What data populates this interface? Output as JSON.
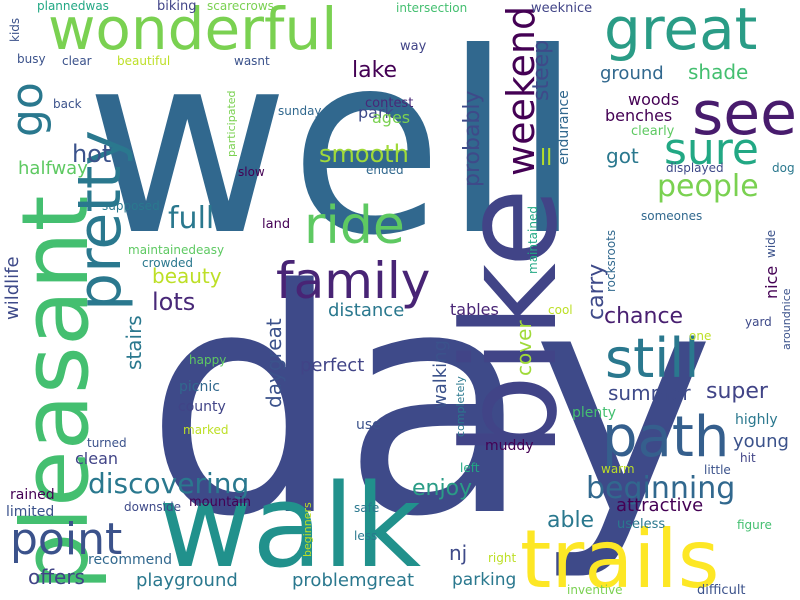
{
  "palette": {
    "dark_purple": "#440154",
    "indigo": "#414487",
    "blue": "#355f8d",
    "teal_blue": "#2a788e",
    "teal": "#21918c",
    "green_teal": "#22a884",
    "green": "#44bf70",
    "light_green": "#7ad151",
    "yellow_green": "#bddf26",
    "yellow": "#fde725"
  },
  "words": [
    {
      "text": "well",
      "color": "#31688e"
    },
    {
      "text": "day",
      "color": "#3e4a89"
    },
    {
      "text": "bike",
      "color": "#414487"
    },
    {
      "text": "walk",
      "color": "#21918c"
    },
    {
      "text": "trails",
      "color": "#fde725"
    },
    {
      "text": "path",
      "color": "#355f8d"
    },
    {
      "text": "wonderful",
      "color": "#7ad151"
    },
    {
      "text": "great",
      "color": "#2a9c86"
    },
    {
      "text": "pleasant",
      "color": "#44bf70"
    },
    {
      "text": "pretty",
      "color": "#2a788e"
    },
    {
      "text": "ride",
      "color": "#5ec962"
    },
    {
      "text": "family",
      "color": "#482475"
    },
    {
      "text": "see",
      "color": "#481b6d"
    },
    {
      "text": "sure",
      "color": "#22a884"
    },
    {
      "text": "still",
      "color": "#2a788e"
    },
    {
      "text": "point",
      "color": "#3b528b"
    },
    {
      "text": "go",
      "color": "#2a788e"
    },
    {
      "text": "people",
      "color": "#7ad151"
    },
    {
      "text": "weekend",
      "color": "#440154"
    },
    {
      "text": "beginning",
      "color": "#31688e"
    },
    {
      "text": "discovering",
      "color": "#2a788e"
    },
    {
      "text": "full",
      "color": "#2a788e"
    },
    {
      "text": "smooth",
      "color": "#a0da39"
    },
    {
      "text": "probably",
      "color": "#3e4a89"
    },
    {
      "text": "steep",
      "color": "#3e4a89"
    },
    {
      "text": "lake",
      "color": "#440154"
    },
    {
      "text": "hot",
      "color": "#3b528b"
    },
    {
      "text": "halfway",
      "color": "#5ec962"
    },
    {
      "text": "got",
      "color": "#2a788e"
    },
    {
      "text": "shade",
      "color": "#44bf70"
    },
    {
      "text": "ground",
      "color": "#31688e"
    },
    {
      "text": "ll",
      "color": "#b5de2b"
    },
    {
      "text": "beauty",
      "color": "#bddf26"
    },
    {
      "text": "lots",
      "color": "#482878"
    },
    {
      "text": "carry",
      "color": "#3e4a89"
    },
    {
      "text": "chance",
      "color": "#481f70"
    },
    {
      "text": "stairs",
      "color": "#2a788e"
    },
    {
      "text": "wildlife",
      "color": "#3e4a89"
    },
    {
      "text": "daygreat",
      "color": "#3b528b"
    },
    {
      "text": "perfect",
      "color": "#414487"
    },
    {
      "text": "walking",
      "color": "#3b528b"
    },
    {
      "text": "cover",
      "color": "#a0da39"
    },
    {
      "text": "summer",
      "color": "#3e4a89"
    },
    {
      "text": "super",
      "color": "#414487"
    },
    {
      "text": "enjoy",
      "color": "#2a9c86"
    },
    {
      "text": "able",
      "color": "#2a788e"
    },
    {
      "text": "young",
      "color": "#3b528b"
    },
    {
      "text": "offers",
      "color": "#414487"
    },
    {
      "text": "nj",
      "color": "#3e4a89"
    },
    {
      "text": "attractive",
      "color": "#440154"
    },
    {
      "text": "distance",
      "color": "#2a788e"
    },
    {
      "text": "tables",
      "color": "#482475"
    },
    {
      "text": "nice",
      "color": "#440154"
    },
    {
      "text": "playground",
      "color": "#2a788e"
    },
    {
      "text": "problemgreat",
      "color": "#2a788e"
    },
    {
      "text": "parking",
      "color": "#2a788e"
    },
    {
      "text": "clean",
      "color": "#414487"
    },
    {
      "text": "rained",
      "color": "#440154"
    },
    {
      "text": "limited",
      "color": "#3b528b"
    },
    {
      "text": "recommend",
      "color": "#31688e"
    },
    {
      "text": "park",
      "color": "#3e4a89"
    },
    {
      "text": "ages",
      "color": "#7ad151"
    },
    {
      "text": "woods",
      "color": "#440154"
    },
    {
      "text": "benches",
      "color": "#440154"
    },
    {
      "text": "contest",
      "color": "#482878"
    },
    {
      "text": "endurance",
      "color": "#31688e"
    },
    {
      "text": "clearly",
      "color": "#5ec962"
    },
    {
      "text": "weeknice",
      "color": "#414487"
    },
    {
      "text": "intersection",
      "color": "#44bf70"
    },
    {
      "text": "way",
      "color": "#414487"
    },
    {
      "text": "plannedwas",
      "color": "#22a884"
    },
    {
      "text": "biking",
      "color": "#414487"
    },
    {
      "text": "scarecrows",
      "color": "#7ad151"
    },
    {
      "text": "kids",
      "color": "#3b528b"
    },
    {
      "text": "busy",
      "color": "#3b528b"
    },
    {
      "text": "clear",
      "color": "#3b528b"
    },
    {
      "text": "beautiful",
      "color": "#bddf26"
    },
    {
      "text": "wasnt",
      "color": "#3b528b"
    },
    {
      "text": "back",
      "color": "#3b528b"
    },
    {
      "text": "participated",
      "color": "#7ad151"
    },
    {
      "text": "sunday",
      "color": "#31688e"
    },
    {
      "text": "ended",
      "color": "#31688e"
    },
    {
      "text": "slow",
      "color": "#440154"
    },
    {
      "text": "supposed",
      "color": "#2a788e"
    },
    {
      "text": "land",
      "color": "#440154"
    },
    {
      "text": "maintainedeasy",
      "color": "#5ec962"
    },
    {
      "text": "crowded",
      "color": "#2a788e"
    },
    {
      "text": "displayed",
      "color": "#3e4a89"
    },
    {
      "text": "dog",
      "color": "#2a788e"
    },
    {
      "text": "someones",
      "color": "#31688e"
    },
    {
      "text": "wide",
      "color": "#3b528b"
    },
    {
      "text": "maintained",
      "color": "#22a884"
    },
    {
      "text": "rocksroots",
      "color": "#31688e"
    },
    {
      "text": "cool",
      "color": "#bddf26"
    },
    {
      "text": "yard",
      "color": "#3e4a89"
    },
    {
      "text": "one",
      "color": "#bddf26"
    },
    {
      "text": "aroundnice",
      "color": "#3b528b"
    },
    {
      "text": "happy",
      "color": "#5ec962"
    },
    {
      "text": "picnic",
      "color": "#31688e"
    },
    {
      "text": "county",
      "color": "#414487"
    },
    {
      "text": "marked",
      "color": "#bddf26"
    },
    {
      "text": "use",
      "color": "#3b528b"
    },
    {
      "text": "completely",
      "color": "#2a788e"
    },
    {
      "text": "plenty",
      "color": "#44bf70"
    },
    {
      "text": "highly",
      "color": "#2a788e"
    },
    {
      "text": "muddy",
      "color": "#440154"
    },
    {
      "text": "turned",
      "color": "#3b528b"
    },
    {
      "text": "hit",
      "color": "#414487"
    },
    {
      "text": "left",
      "color": "#22a884"
    },
    {
      "text": "warm",
      "color": "#bddf26"
    },
    {
      "text": "little",
      "color": "#3b528b"
    },
    {
      "text": "mountain",
      "color": "#440154"
    },
    {
      "text": "downside",
      "color": "#3e4a89"
    },
    {
      "text": "safe",
      "color": "#2a788e"
    },
    {
      "text": "beginners",
      "color": "#bddf26"
    },
    {
      "text": "less",
      "color": "#2a788e"
    },
    {
      "text": "right",
      "color": "#bddf26"
    },
    {
      "text": "useless",
      "color": "#2a788e"
    },
    {
      "text": "figure",
      "color": "#44bf70"
    },
    {
      "text": "inventive",
      "color": "#7ad151"
    },
    {
      "text": "difficult",
      "color": "#3b528b"
    }
  ]
}
